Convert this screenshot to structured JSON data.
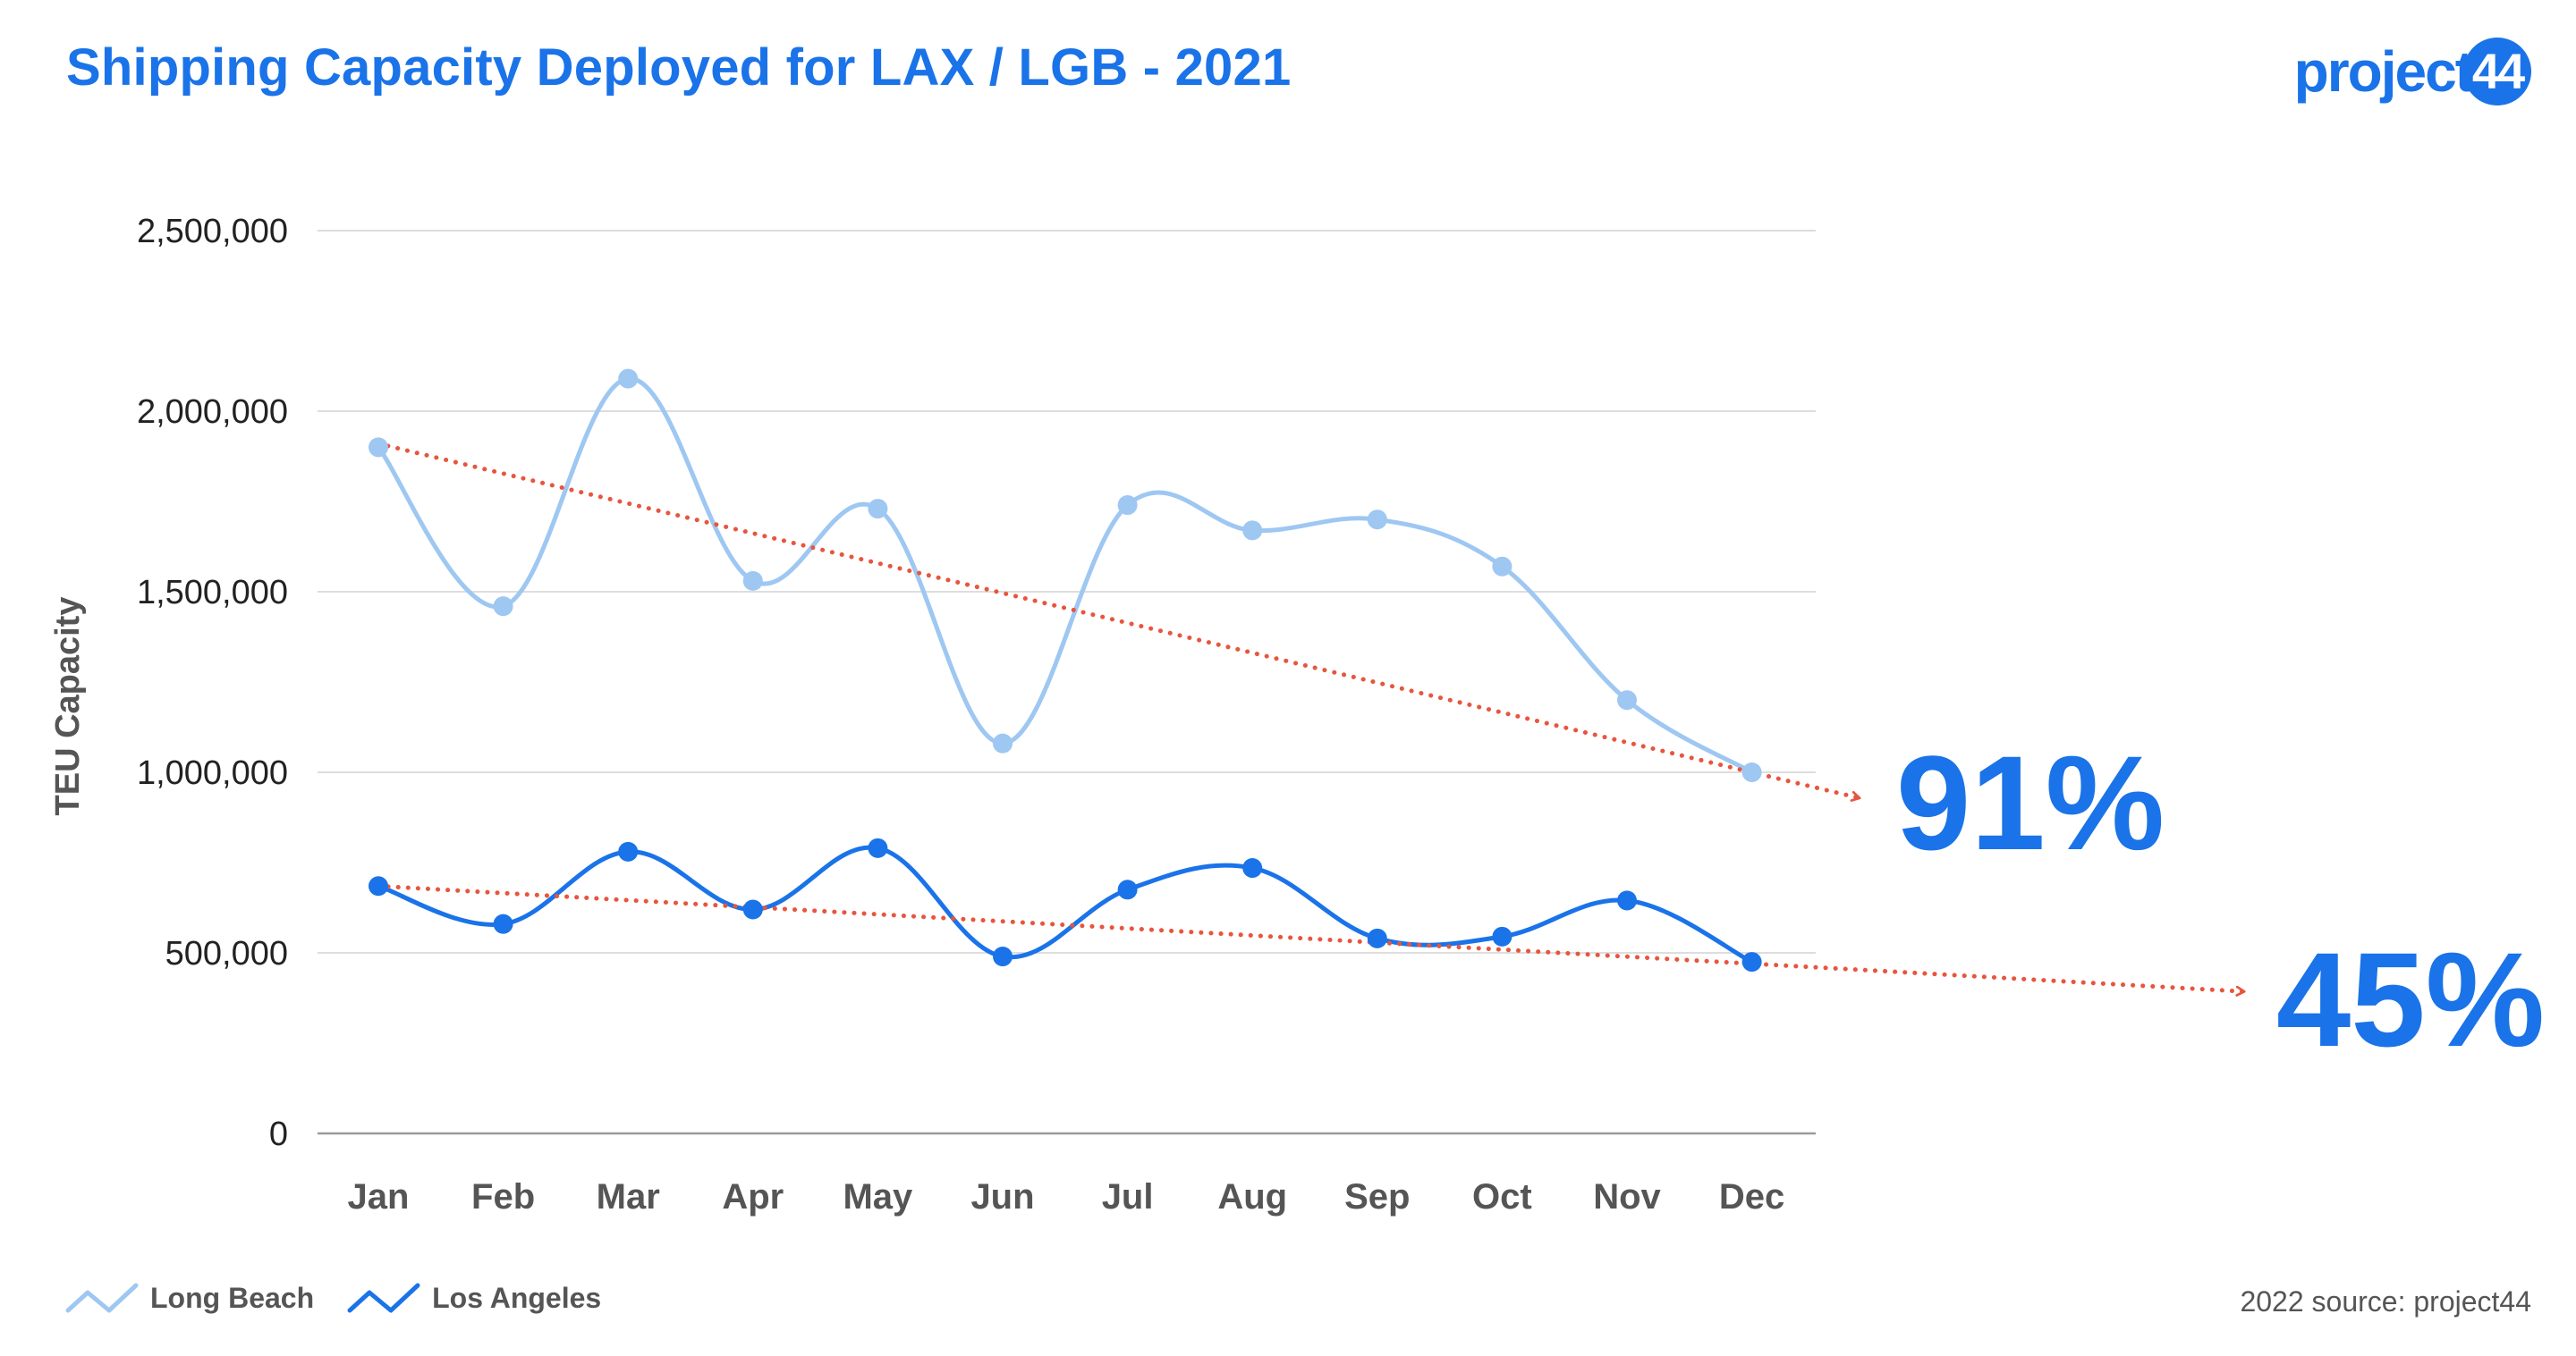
{
  "header": {
    "title": "Shipping Capacity Deployed for LAX / LGB - 2021",
    "logo_text": "project",
    "logo_badge": "44"
  },
  "footer": {
    "source": "2022 source: project44"
  },
  "colors": {
    "title": "#1a73e8",
    "long_beach": "#9ec7f2",
    "los_angeles": "#1a73e8",
    "trend": "#e8553d",
    "annotation": "#1a73e8"
  },
  "chart_data": {
    "type": "line",
    "title": "Shipping Capacity Deployed for LAX / LGB - 2021",
    "xlabel": "",
    "ylabel": "TEU Capacity",
    "ylim": [
      0,
      2500000
    ],
    "yticks": [
      0,
      500000,
      1000000,
      1500000,
      2000000,
      2500000
    ],
    "ytick_labels": [
      "0",
      "500,000",
      "1,000,000",
      "1,500,000",
      "2,000,000",
      "2,500,000"
    ],
    "grid": true,
    "legend_position": "bottom-left",
    "categories": [
      "Jan",
      "Feb",
      "Mar",
      "Apr",
      "May",
      "Jun",
      "Jul",
      "Aug",
      "Sep",
      "Oct",
      "Nov",
      "Dec"
    ],
    "series": [
      {
        "name": "Long Beach",
        "color": "#9ec7f2",
        "values": [
          1900000,
          1460000,
          2090000,
          1530000,
          1730000,
          1080000,
          1740000,
          1670000,
          1700000,
          1570000,
          1200000,
          1000000
        ]
      },
      {
        "name": "Los Angeles",
        "color": "#1a73e8",
        "values": [
          685000,
          580000,
          780000,
          620000,
          790000,
          490000,
          675000,
          735000,
          540000,
          545000,
          645000,
          475000
        ]
      }
    ],
    "annotations": [
      {
        "label": "91%",
        "series": "Long Beach",
        "trend_from": 1910000,
        "trend_to": 1000000
      },
      {
        "label": "45%",
        "series": "Los Angeles",
        "trend_from": 685000,
        "trend_to": 470000
      }
    ]
  }
}
